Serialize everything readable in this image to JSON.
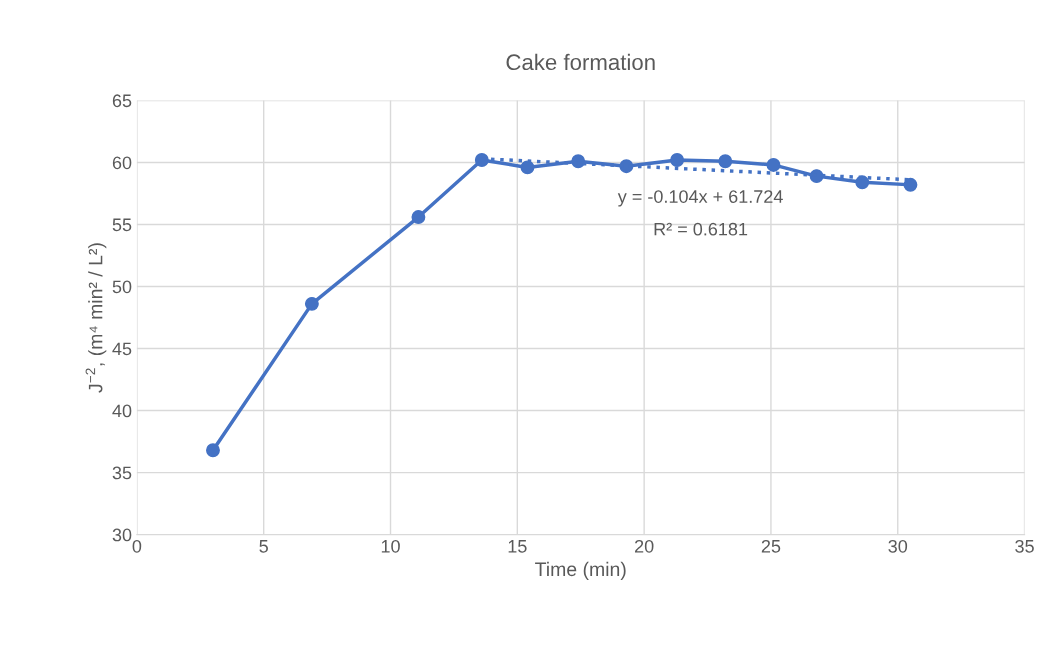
{
  "chart_data": {
    "type": "line",
    "title": "Cake formation",
    "xlabel": "Time (min)",
    "ylabel": "J$^{−2}$, (m⁴ min² / L²)",
    "x": [
      3.0,
      6.9,
      11.1,
      13.6,
      15.4,
      17.4,
      19.3,
      21.3,
      23.2,
      25.1,
      26.8,
      28.6,
      30.5
    ],
    "series": [
      {
        "color": "#4472c4",
        "values": [
          36.8,
          48.6,
          55.6,
          60.2,
          59.6,
          60.1,
          59.7,
          60.2,
          60.1,
          59.8,
          58.9,
          58.4,
          58.2
        ],
        "marker": "circle",
        "line_style": "solid"
      },
      {
        "type": "line",
        "color": "#4472c4",
        "x": [
          13.6,
          30.5
        ],
        "values": [
          60.3,
          58.6
        ],
        "marker": "none",
        "line_style": "dotted"
      }
    ],
    "xlim": [
      0,
      35
    ],
    "xticks": [
      0,
      5,
      10,
      15,
      20,
      25,
      30,
      35
    ],
    "ylim": [
      30,
      65
    ],
    "yticks": [
      30,
      35,
      40,
      45,
      50,
      55,
      60,
      65
    ],
    "grid": true,
    "legend": false,
    "annotations": [
      "y = -0.104x + 61.724",
      "R² = 0.6181"
    ]
  }
}
